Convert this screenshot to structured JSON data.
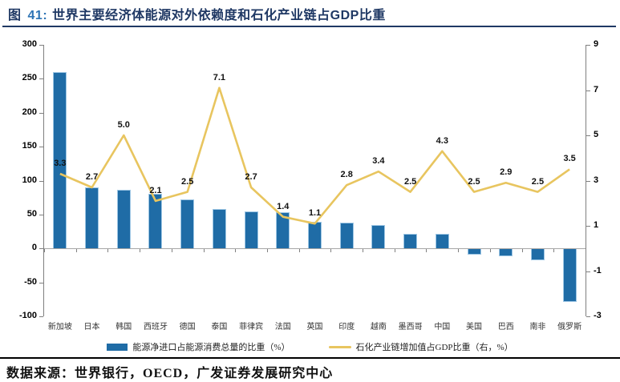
{
  "header": {
    "fig_label": "图",
    "fig_num": "41:",
    "title": "世界主要经济体能源对外依赖度和石化产业链占GDP比重"
  },
  "footer": {
    "source": "数据来源：世界银行，OECD，广发证券发展研究中心"
  },
  "colors": {
    "bar": "#1F6CA6",
    "line": "#E8C55F",
    "title_navy": "#1F3864",
    "title_num_blue": "#2E74B5",
    "axis_gray": "#808080",
    "zero_line_gray": "#A6A6A6"
  },
  "chart_data": {
    "type": "bar",
    "subtype": "bar+line combo, dual axis",
    "categories": [
      "新加坡",
      "日本",
      "韩国",
      "西班牙",
      "德国",
      "泰国",
      "菲律宾",
      "法国",
      "英国",
      "印度",
      "越南",
      "墨西哥",
      "中国",
      "美国",
      "巴西",
      "南非",
      "俄罗斯"
    ],
    "series": [
      {
        "name": "能源净进口占能源消费总量的比重（%）",
        "type": "bar",
        "axis": "left",
        "color": "#1F6CA6",
        "values": [
          260,
          90,
          86,
          81,
          72,
          58,
          55,
          53,
          39,
          38,
          35,
          22,
          21,
          -8,
          -10,
          -16,
          -77
        ]
      },
      {
        "name": "石化产业链增加值占GDP比重（右，%）",
        "type": "line",
        "axis": "right",
        "color": "#E8C55F",
        "values": [
          3.3,
          2.7,
          5.0,
          2.1,
          2.5,
          7.1,
          2.7,
          1.4,
          1.1,
          2.8,
          3.4,
          2.5,
          4.3,
          2.5,
          2.9,
          2.5,
          3.5
        ],
        "data_labels": true
      }
    ],
    "left_axis": {
      "min": -100,
      "max": 300,
      "ticks": [
        300,
        250,
        200,
        150,
        100,
        50,
        0,
        -50,
        -100
      ]
    },
    "right_axis": {
      "min": -3,
      "max": 9,
      "ticks": [
        9,
        7,
        5,
        3,
        1,
        -1,
        -3
      ]
    },
    "grid": false,
    "legend_position": "bottom"
  }
}
